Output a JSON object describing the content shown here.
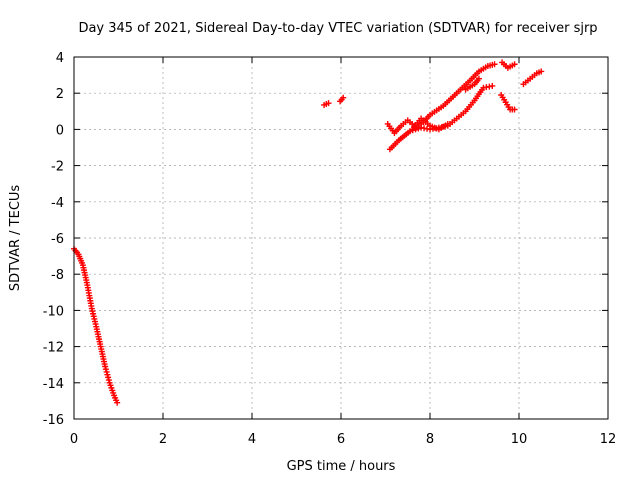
{
  "chart_data": {
    "type": "scatter",
    "title": "Day 345 of 2021, Sidereal Day-to-day VTEC variation (SDTVAR) for receiver sjrp",
    "xlabel": "GPS time / hours",
    "ylabel": "SDTVAR / TECUs",
    "xlim": [
      0,
      12
    ],
    "ylim": [
      -16,
      4
    ],
    "xticks": [
      0,
      2,
      4,
      6,
      8,
      10,
      12
    ],
    "yticks": [
      4,
      2,
      0,
      -2,
      -4,
      -6,
      -8,
      -10,
      -12,
      -14,
      -16
    ],
    "grid": true,
    "marker": "plus",
    "series": [
      {
        "name": "sjrp",
        "color": "#ff0000",
        "segments": [
          [
            [
              0.0,
              -6.6
            ],
            [
              0.1,
              -6.9
            ],
            [
              0.2,
              -7.5
            ],
            [
              0.3,
              -8.6
            ],
            [
              0.4,
              -9.9
            ],
            [
              0.5,
              -10.9
            ],
            [
              0.6,
              -12.0
            ],
            [
              0.7,
              -13.1
            ],
            [
              0.8,
              -14.0
            ],
            [
              0.9,
              -14.7
            ],
            [
              0.97,
              -15.1
            ]
          ],
          [
            [
              5.62,
              1.35
            ],
            [
              5.72,
              1.45
            ]
          ],
          [
            [
              5.98,
              1.55
            ],
            [
              6.05,
              1.75
            ]
          ],
          [
            [
              7.05,
              0.3
            ],
            [
              7.2,
              -0.2
            ],
            [
              7.35,
              0.2
            ],
            [
              7.5,
              0.5
            ],
            [
              7.7,
              0.1
            ],
            [
              7.85,
              0.4
            ],
            [
              8.0,
              0.8
            ],
            [
              8.3,
              1.3
            ],
            [
              8.6,
              2.0
            ],
            [
              8.9,
              2.7
            ],
            [
              9.1,
              3.2
            ],
            [
              9.3,
              3.5
            ],
            [
              9.45,
              3.6
            ]
          ],
          [
            [
              7.1,
              -1.1
            ],
            [
              7.3,
              -0.6
            ],
            [
              7.55,
              -0.1
            ],
            [
              7.8,
              0.1
            ],
            [
              8.0,
              0.0
            ],
            [
              8.2,
              0.1
            ],
            [
              8.4,
              0.2
            ],
            [
              8.6,
              0.6
            ],
            [
              8.8,
              1.0
            ],
            [
              9.0,
              1.6
            ],
            [
              9.2,
              2.3
            ],
            [
              9.4,
              2.4
            ]
          ],
          [
            [
              7.6,
              0.0
            ],
            [
              7.8,
              0.6
            ],
            [
              8.0,
              0.2
            ],
            [
              8.2,
              0.0
            ],
            [
              8.4,
              0.3
            ]
          ],
          [
            [
              8.8,
              2.2
            ],
            [
              9.0,
              2.5
            ],
            [
              9.1,
              2.8
            ]
          ],
          [
            [
              9.62,
              3.7
            ],
            [
              9.75,
              3.4
            ],
            [
              9.9,
              3.6
            ]
          ],
          [
            [
              9.6,
              1.9
            ],
            [
              9.7,
              1.5
            ],
            [
              9.8,
              1.1
            ],
            [
              9.9,
              1.1
            ]
          ],
          [
            [
              10.1,
              2.5
            ],
            [
              10.25,
              2.8
            ],
            [
              10.4,
              3.1
            ],
            [
              10.5,
              3.2
            ]
          ]
        ]
      }
    ]
  }
}
